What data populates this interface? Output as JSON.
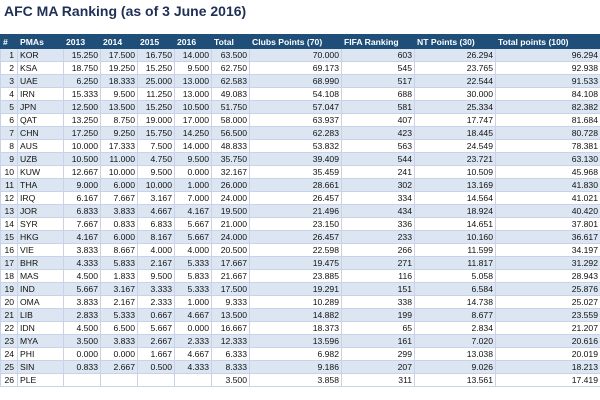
{
  "title": "AFC MA Ranking (as of 3 June 2016)",
  "columns": [
    "#",
    "PMAs",
    "2013",
    "2014",
    "2015",
    "2016",
    "Total",
    "Clubs Points (70)",
    "FIFA Ranking",
    "NT Points (30)",
    "Total points (100)"
  ],
  "rows": [
    [
      "1",
      "KOR",
      "15.250",
      "17.500",
      "16.750",
      "14.000",
      "63.500",
      "70.000",
      "603",
      "26.294",
      "96.294"
    ],
    [
      "2",
      "KSA",
      "18.750",
      "19.250",
      "15.250",
      "9.500",
      "62.750",
      "69.173",
      "545",
      "23.765",
      "92.938"
    ],
    [
      "3",
      "UAE",
      "6.250",
      "18.333",
      "25.000",
      "13.000",
      "62.583",
      "68.990",
      "517",
      "22.544",
      "91.533"
    ],
    [
      "4",
      "IRN",
      "15.333",
      "9.500",
      "11.250",
      "13.000",
      "49.083",
      "54.108",
      "688",
      "30.000",
      "84.108"
    ],
    [
      "5",
      "JPN",
      "12.500",
      "13.500",
      "15.250",
      "10.500",
      "51.750",
      "57.047",
      "581",
      "25.334",
      "82.382"
    ],
    [
      "6",
      "QAT",
      "13.250",
      "8.750",
      "19.000",
      "17.000",
      "58.000",
      "63.937",
      "407",
      "17.747",
      "81.684"
    ],
    [
      "7",
      "CHN",
      "17.250",
      "9.250",
      "15.750",
      "14.250",
      "56.500",
      "62.283",
      "423",
      "18.445",
      "80.728"
    ],
    [
      "8",
      "AUS",
      "10.000",
      "17.333",
      "7.500",
      "14.000",
      "48.833",
      "53.832",
      "563",
      "24.549",
      "78.381"
    ],
    [
      "9",
      "UZB",
      "10.500",
      "11.000",
      "4.750",
      "9.500",
      "35.750",
      "39.409",
      "544",
      "23.721",
      "63.130"
    ],
    [
      "10",
      "KUW",
      "12.667",
      "10.000",
      "9.500",
      "0.000",
      "32.167",
      "35.459",
      "241",
      "10.509",
      "45.968"
    ],
    [
      "11",
      "THA",
      "9.000",
      "6.000",
      "10.000",
      "1.000",
      "26.000",
      "28.661",
      "302",
      "13.169",
      "41.830"
    ],
    [
      "12",
      "IRQ",
      "6.167",
      "7.667",
      "3.167",
      "7.000",
      "24.000",
      "26.457",
      "334",
      "14.564",
      "41.021"
    ],
    [
      "13",
      "JOR",
      "6.833",
      "3.833",
      "4.667",
      "4.167",
      "19.500",
      "21.496",
      "434",
      "18.924",
      "40.420"
    ],
    [
      "14",
      "SYR",
      "7.667",
      "0.833",
      "6.833",
      "5.667",
      "21.000",
      "23.150",
      "336",
      "14.651",
      "37.801"
    ],
    [
      "15",
      "HKG",
      "4.167",
      "6.000",
      "8.167",
      "5.667",
      "24.000",
      "26.457",
      "233",
      "10.160",
      "36.617"
    ],
    [
      "16",
      "VIE",
      "3.833",
      "8.667",
      "4.000",
      "4.000",
      "20.500",
      "22.598",
      "266",
      "11.599",
      "34.197"
    ],
    [
      "17",
      "BHR",
      "4.333",
      "5.833",
      "2.167",
      "5.333",
      "17.667",
      "19.475",
      "271",
      "11.817",
      "31.292"
    ],
    [
      "18",
      "MAS",
      "4.500",
      "1.833",
      "9.500",
      "5.833",
      "21.667",
      "23.885",
      "116",
      "5.058",
      "28.943"
    ],
    [
      "19",
      "IND",
      "5.667",
      "3.167",
      "3.333",
      "5.333",
      "17.500",
      "19.291",
      "151",
      "6.584",
      "25.876"
    ],
    [
      "20",
      "OMA",
      "3.833",
      "2.167",
      "2.333",
      "1.000",
      "9.333",
      "10.289",
      "338",
      "14.738",
      "25.027"
    ],
    [
      "21",
      "LIB",
      "2.833",
      "5.333",
      "0.667",
      "4.667",
      "13.500",
      "14.882",
      "199",
      "8.677",
      "23.559"
    ],
    [
      "22",
      "IDN",
      "4.500",
      "6.500",
      "5.667",
      "0.000",
      "16.667",
      "18.373",
      "65",
      "2.834",
      "21.207"
    ],
    [
      "23",
      "MYA",
      "3.500",
      "3.833",
      "2.667",
      "2.333",
      "12.333",
      "13.596",
      "161",
      "7.020",
      "20.616"
    ],
    [
      "24",
      "PHI",
      "0.000",
      "0.000",
      "1.667",
      "4.667",
      "6.333",
      "6.982",
      "299",
      "13.038",
      "20.019"
    ],
    [
      "25",
      "SIN",
      "0.833",
      "2.667",
      "0.500",
      "4.333",
      "8.333",
      "9.186",
      "207",
      "9.026",
      "18.213"
    ],
    [
      "26",
      "PLE",
      "",
      "",
      "",
      "",
      "3.500",
      "3.858",
      "311",
      "13.561",
      "17.419"
    ]
  ]
}
